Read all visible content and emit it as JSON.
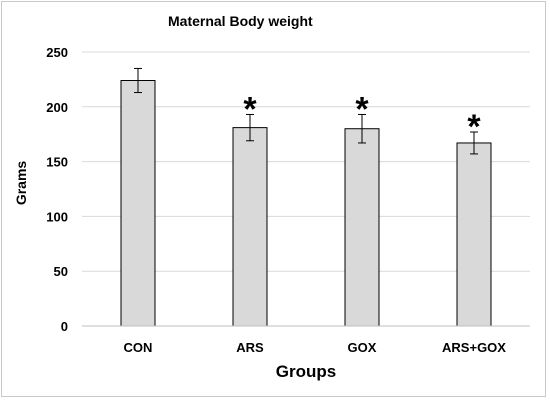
{
  "chart_data": {
    "type": "bar",
    "title": "Maternal Body weight",
    "xlabel": "Groups",
    "ylabel": "Grams",
    "categories": [
      "CON",
      "ARS",
      "GOX",
      "ARS+GOX"
    ],
    "values": [
      224,
      181,
      180,
      167
    ],
    "error": [
      11,
      12,
      13,
      10
    ],
    "annotations": [
      "",
      "*",
      "*",
      "*"
    ],
    "ylim": [
      0,
      250
    ],
    "yticks": [
      "0",
      "50",
      "100",
      "150",
      "200",
      "250"
    ],
    "grid": true,
    "bar_color": "#d9d9d9",
    "grid_color": "#d9d9d9"
  }
}
